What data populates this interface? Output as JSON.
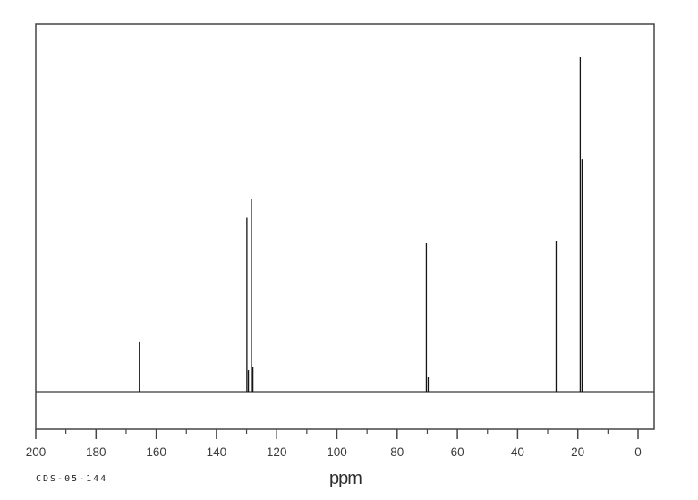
{
  "window": {
    "background_color": "#ffffff"
  },
  "chart_data": {
    "type": "line",
    "subtype": "NMR spectrum (peak plot)",
    "title": "",
    "xlabel": "ppm",
    "ylabel": "",
    "sample_id": "CDS-05-144",
    "grid": false,
    "legend": false,
    "frame_color": "#454545",
    "baseline_color": "#3a3a3a",
    "peak_color": "#151515",
    "tick_label_color": "#3b3b3b",
    "x_axis": {
      "min": 0,
      "max": 200,
      "inverted": true,
      "major_tick_interval": 20,
      "minor_tick_interval": 10,
      "tick_labels": [
        "200",
        "180",
        "160",
        "140",
        "120",
        "100",
        "80",
        "60",
        "40",
        "20",
        "0"
      ]
    },
    "y_axis": {
      "visible": false,
      "range": [
        0,
        1
      ]
    },
    "peaks": [
      {
        "ppm": 165.6,
        "intensity": 0.15
      },
      {
        "ppm": 129.9,
        "intensity": 0.52
      },
      {
        "ppm": 129.4,
        "intensity": 0.064
      },
      {
        "ppm": 128.4,
        "intensity": 0.575
      },
      {
        "ppm": 127.9,
        "intensity": 0.075
      },
      {
        "ppm": 70.3,
        "intensity": 0.444
      },
      {
        "ppm": 69.7,
        "intensity": 0.043
      },
      {
        "ppm": 27.2,
        "intensity": 0.452
      },
      {
        "ppm": 19.2,
        "intensity": 1.0
      },
      {
        "ppm": 18.6,
        "intensity": 0.695
      }
    ]
  }
}
